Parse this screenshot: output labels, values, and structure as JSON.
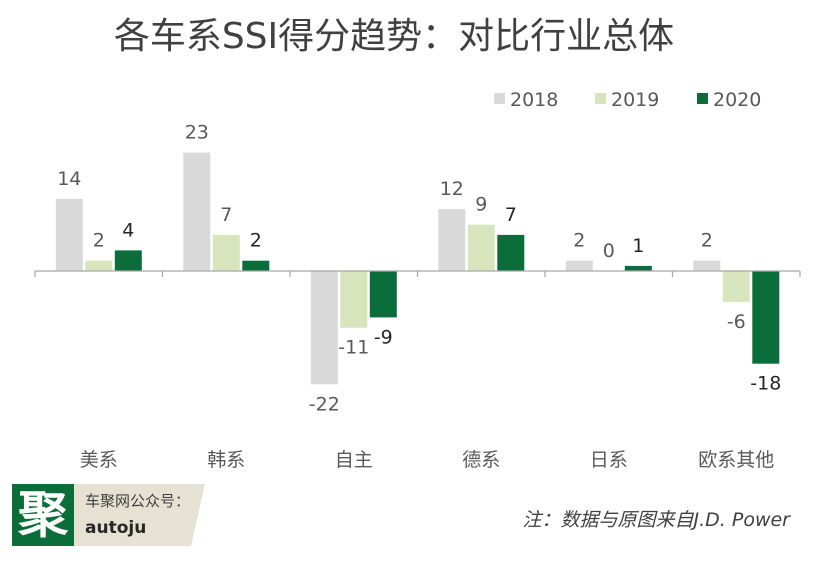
{
  "chart_data": {
    "type": "bar",
    "title": "各车系SSI得分趋势：对比行业总体",
    "xlabel": "",
    "ylabel": "",
    "ylim": [
      -25,
      25
    ],
    "legend_position": "top-right",
    "grid": false,
    "categories": [
      "美系",
      "韩系",
      "自主",
      "德系",
      "日系",
      "欧系其他"
    ],
    "series": [
      {
        "name": "2018",
        "color": "#d9d9d9",
        "values": [
          14,
          23,
          -22,
          12,
          2,
          2
        ]
      },
      {
        "name": "2019",
        "color": "#d8e4bc",
        "values": [
          2,
          7,
          -11,
          9,
          0,
          -6
        ]
      },
      {
        "name": "2020",
        "color": "#0b6e3a",
        "values": [
          4,
          2,
          -9,
          7,
          1,
          -18
        ]
      }
    ]
  },
  "footer": {
    "logo_char": "聚",
    "brand_line1": "车聚网公众号：",
    "brand_line2": "autoju",
    "note": "注：数据与原图来自J.D. Power",
    "logo_color": "#0b6e3a",
    "brand_bg_color": "#e6e2d3"
  }
}
